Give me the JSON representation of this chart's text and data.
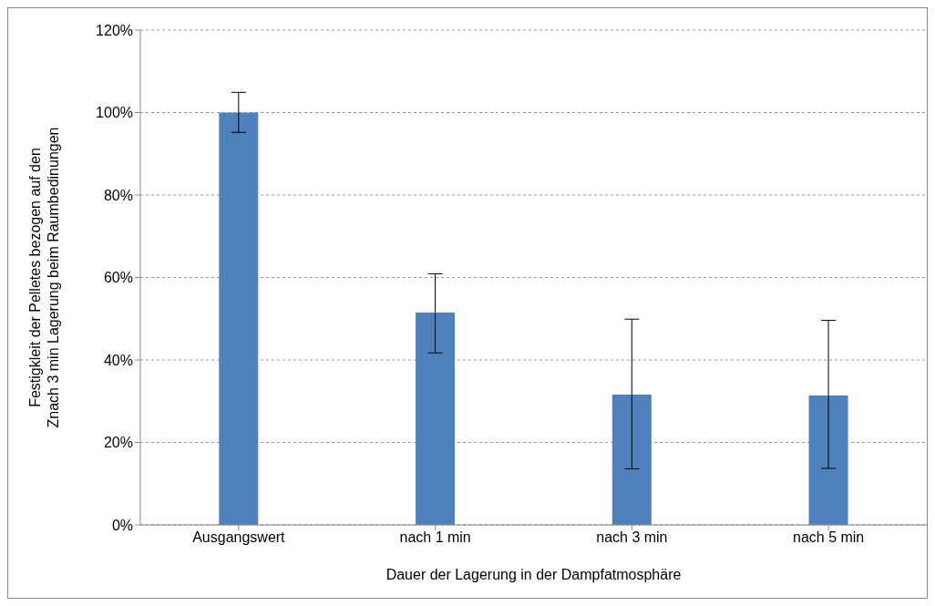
{
  "chart_data": {
    "type": "bar",
    "categories": [
      "Ausgangswert",
      "nach 1 min",
      "nach 3 min",
      "nach 5 min"
    ],
    "values": [
      100,
      51.5,
      31.6,
      31.4
    ],
    "errors": [
      [
        95.2,
        104.9
      ],
      [
        41.7,
        60.9
      ],
      [
        13.6,
        49.9
      ],
      [
        13.7,
        49.6
      ]
    ],
    "color": "#4f81bd",
    "xlabel": "Dauer der Lagerung in der Dampfatmosphäre",
    "ylabel": "Festigkleit der Pelletes bezogen auf den Znach 3 min Lagerung beim Raumbedinungen",
    "ylim": [
      0,
      120
    ],
    "yticks": [
      {
        "value": 0,
        "label": "0%"
      },
      {
        "value": 20,
        "label": "20%"
      },
      {
        "value": 40,
        "label": "40%"
      },
      {
        "value": 60,
        "label": "60%"
      },
      {
        "value": 80,
        "label": "80%"
      },
      {
        "value": 100,
        "label": "100%"
      },
      {
        "value": 120,
        "label": "120%"
      }
    ],
    "grid": "y"
  }
}
